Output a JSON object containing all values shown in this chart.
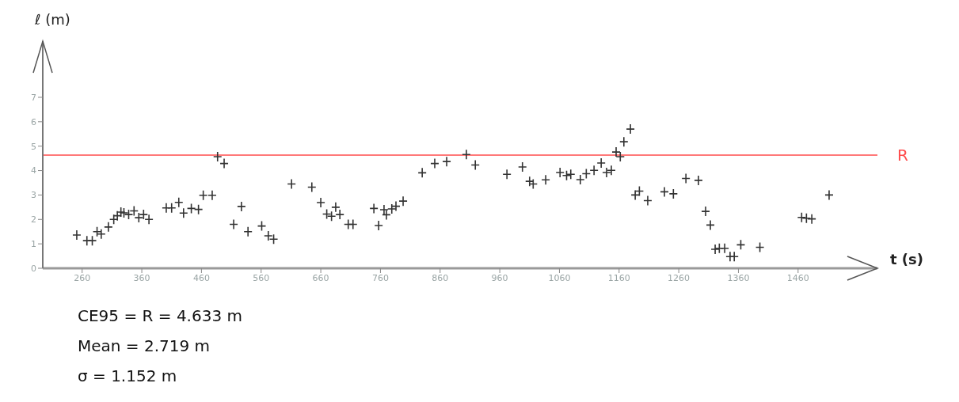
{
  "chart_data": {
    "type": "scatter",
    "xlabel": "t (s)",
    "ylabel": "ℓ (m)",
    "x": [
      251,
      268,
      277,
      285,
      292,
      304,
      313,
      319,
      325,
      330,
      338,
      347,
      355,
      363,
      372,
      401,
      410,
      422,
      430,
      443,
      455,
      463,
      478,
      487,
      498,
      514,
      527,
      538,
      561,
      572,
      581,
      611,
      645,
      660,
      670,
      678,
      685,
      692,
      706,
      714,
      749,
      757,
      766,
      770,
      779,
      786,
      798,
      830,
      851,
      871,
      904,
      919,
      972,
      998,
      1010,
      1016,
      1037,
      1061,
      1072,
      1079,
      1095,
      1105,
      1118,
      1130,
      1139,
      1147,
      1155,
      1162,
      1168,
      1179,
      1187,
      1194,
      1208,
      1236,
      1251,
      1272,
      1293,
      1305,
      1313,
      1321,
      1328,
      1337,
      1346,
      1353,
      1364,
      1396,
      1466,
      1474,
      1483,
      1512
    ],
    "values": [
      1.36,
      1.13,
      1.13,
      1.5,
      1.4,
      1.69,
      2.0,
      2.15,
      2.3,
      2.27,
      2.2,
      2.35,
      2.07,
      2.2,
      2.0,
      2.47,
      2.47,
      2.7,
      2.26,
      2.45,
      2.41,
      2.99,
      2.99,
      4.57,
      4.29,
      1.8,
      2.53,
      1.5,
      1.73,
      1.33,
      1.19,
      3.45,
      3.32,
      2.69,
      2.22,
      2.13,
      2.5,
      2.2,
      1.8,
      1.8,
      2.45,
      1.75,
      2.4,
      2.19,
      2.43,
      2.54,
      2.75,
      3.91,
      4.29,
      4.37,
      4.66,
      4.23,
      3.85,
      4.15,
      3.56,
      3.45,
      3.62,
      3.92,
      3.8,
      3.85,
      3.63,
      3.87,
      4.01,
      4.31,
      3.92,
      4.01,
      4.76,
      4.57,
      5.18,
      5.7,
      3.0,
      3.16,
      2.77,
      3.13,
      3.05,
      3.68,
      3.6,
      2.33,
      1.77,
      0.78,
      0.82,
      0.82,
      0.48,
      0.48,
      0.96,
      0.86,
      2.08,
      2.05,
      2.02,
      3.0
    ],
    "color": "#333333",
    "marker": "cross",
    "xlim": [
      194,
      1593
    ],
    "xticks": [
      260,
      360,
      460,
      560,
      660,
      760,
      860,
      960,
      1060,
      1160,
      1260,
      1360,
      1460
    ],
    "ylim": [
      0,
      9.3
    ],
    "yticks": [
      0,
      1,
      2,
      3,
      4,
      5,
      6,
      7
    ],
    "ref_lines": [
      {
        "axis": "y",
        "value": 4.633,
        "label": "R",
        "color": "#ff4d4d"
      }
    ],
    "annotations": [
      "CE95 = R = 4.633 m",
      "Mean = 2.719 m",
      "σ = 1.152 m"
    ]
  }
}
